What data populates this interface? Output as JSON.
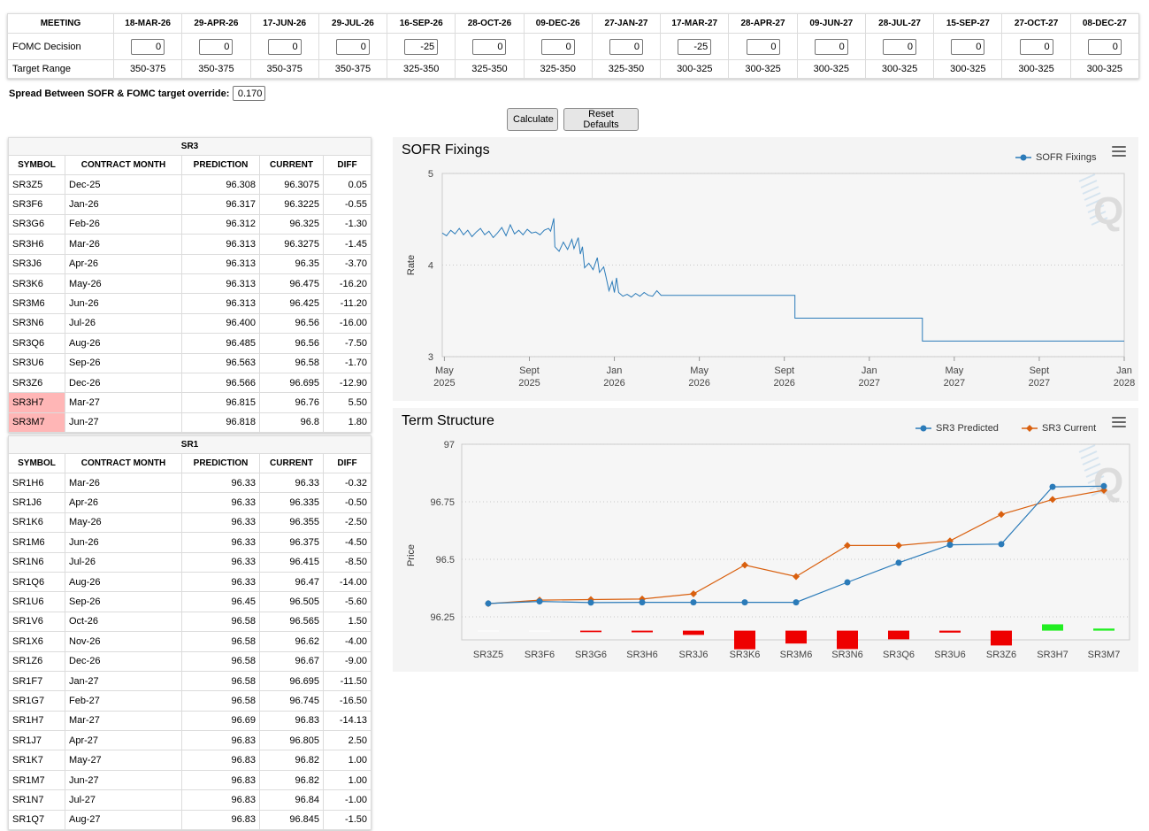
{
  "meetings": {
    "header_label": "MEETING",
    "decision_label": "FOMC Decision",
    "range_label": "Target Range",
    "columns": [
      {
        "date": "18-MAR-26",
        "decision": "0",
        "range": "350-375"
      },
      {
        "date": "29-APR-26",
        "decision": "0",
        "range": "350-375"
      },
      {
        "date": "17-JUN-26",
        "decision": "0",
        "range": "350-375"
      },
      {
        "date": "29-JUL-26",
        "decision": "0",
        "range": "350-375"
      },
      {
        "date": "16-SEP-26",
        "decision": "-25",
        "range": "325-350"
      },
      {
        "date": "28-OCT-26",
        "decision": "0",
        "range": "325-350"
      },
      {
        "date": "09-DEC-26",
        "decision": "0",
        "range": "325-350"
      },
      {
        "date": "27-JAN-27",
        "decision": "0",
        "range": "325-350"
      },
      {
        "date": "17-MAR-27",
        "decision": "-25",
        "range": "300-325"
      },
      {
        "date": "28-APR-27",
        "decision": "0",
        "range": "300-325"
      },
      {
        "date": "09-JUN-27",
        "decision": "0",
        "range": "300-325"
      },
      {
        "date": "28-JUL-27",
        "decision": "0",
        "range": "300-325"
      },
      {
        "date": "15-SEP-27",
        "decision": "0",
        "range": "300-325"
      },
      {
        "date": "27-OCT-27",
        "decision": "0",
        "range": "300-325"
      },
      {
        "date": "08-DEC-27",
        "decision": "0",
        "range": "300-325"
      }
    ]
  },
  "spread": {
    "label": "Spread Between SOFR & FOMC target override:",
    "value": "0.170"
  },
  "buttons": {
    "calculate": "Calculate",
    "reset": "Reset Defaults"
  },
  "sr3_table": {
    "title": "SR3",
    "headers": [
      "SYMBOL",
      "CONTRACT MONTH",
      "PREDICTION",
      "CURRENT",
      "DIFF"
    ],
    "rows": [
      {
        "symbol": "SR3Z5",
        "month": "Dec-25",
        "prediction": "96.308",
        "current": "96.3075",
        "diff": "0.05",
        "highlight": false
      },
      {
        "symbol": "SR3F6",
        "month": "Jan-26",
        "prediction": "96.317",
        "current": "96.3225",
        "diff": "-0.55",
        "highlight": false
      },
      {
        "symbol": "SR3G6",
        "month": "Feb-26",
        "prediction": "96.312",
        "current": "96.325",
        "diff": "-1.30",
        "highlight": false
      },
      {
        "symbol": "SR3H6",
        "month": "Mar-26",
        "prediction": "96.313",
        "current": "96.3275",
        "diff": "-1.45",
        "highlight": false
      },
      {
        "symbol": "SR3J6",
        "month": "Apr-26",
        "prediction": "96.313",
        "current": "96.35",
        "diff": "-3.70",
        "highlight": false
      },
      {
        "symbol": "SR3K6",
        "month": "May-26",
        "prediction": "96.313",
        "current": "96.475",
        "diff": "-16.20",
        "highlight": false
      },
      {
        "symbol": "SR3M6",
        "month": "Jun-26",
        "prediction": "96.313",
        "current": "96.425",
        "diff": "-11.20",
        "highlight": false
      },
      {
        "symbol": "SR3N6",
        "month": "Jul-26",
        "prediction": "96.400",
        "current": "96.56",
        "diff": "-16.00",
        "highlight": false
      },
      {
        "symbol": "SR3Q6",
        "month": "Aug-26",
        "prediction": "96.485",
        "current": "96.56",
        "diff": "-7.50",
        "highlight": false
      },
      {
        "symbol": "SR3U6",
        "month": "Sep-26",
        "prediction": "96.563",
        "current": "96.58",
        "diff": "-1.70",
        "highlight": false
      },
      {
        "symbol": "SR3Z6",
        "month": "Dec-26",
        "prediction": "96.566",
        "current": "96.695",
        "diff": "-12.90",
        "highlight": false
      },
      {
        "symbol": "SR3H7",
        "month": "Mar-27",
        "prediction": "96.815",
        "current": "96.76",
        "diff": "5.50",
        "highlight": true
      },
      {
        "symbol": "SR3M7",
        "month": "Jun-27",
        "prediction": "96.818",
        "current": "96.8",
        "diff": "1.80",
        "highlight": true
      }
    ]
  },
  "sr1_table": {
    "title": "SR1",
    "headers": [
      "SYMBOL",
      "CONTRACT MONTH",
      "PREDICTION",
      "CURRENT",
      "DIFF"
    ],
    "rows": [
      {
        "symbol": "SR1H6",
        "month": "Mar-26",
        "prediction": "96.33",
        "current": "96.33",
        "diff": "-0.32"
      },
      {
        "symbol": "SR1J6",
        "month": "Apr-26",
        "prediction": "96.33",
        "current": "96.335",
        "diff": "-0.50"
      },
      {
        "symbol": "SR1K6",
        "month": "May-26",
        "prediction": "96.33",
        "current": "96.355",
        "diff": "-2.50"
      },
      {
        "symbol": "SR1M6",
        "month": "Jun-26",
        "prediction": "96.33",
        "current": "96.375",
        "diff": "-4.50"
      },
      {
        "symbol": "SR1N6",
        "month": "Jul-26",
        "prediction": "96.33",
        "current": "96.415",
        "diff": "-8.50"
      },
      {
        "symbol": "SR1Q6",
        "month": "Aug-26",
        "prediction": "96.33",
        "current": "96.47",
        "diff": "-14.00"
      },
      {
        "symbol": "SR1U6",
        "month": "Sep-26",
        "prediction": "96.45",
        "current": "96.505",
        "diff": "-5.60"
      },
      {
        "symbol": "SR1V6",
        "month": "Oct-26",
        "prediction": "96.58",
        "current": "96.565",
        "diff": "1.50"
      },
      {
        "symbol": "SR1X6",
        "month": "Nov-26",
        "prediction": "96.58",
        "current": "96.62",
        "diff": "-4.00"
      },
      {
        "symbol": "SR1Z6",
        "month": "Dec-26",
        "prediction": "96.58",
        "current": "96.67",
        "diff": "-9.00"
      },
      {
        "symbol": "SR1F7",
        "month": "Jan-27",
        "prediction": "96.58",
        "current": "96.695",
        "diff": "-11.50"
      },
      {
        "symbol": "SR1G7",
        "month": "Feb-27",
        "prediction": "96.58",
        "current": "96.745",
        "diff": "-16.50"
      },
      {
        "symbol": "SR1H7",
        "month": "Mar-27",
        "prediction": "96.69",
        "current": "96.83",
        "diff": "-14.13"
      },
      {
        "symbol": "SR1J7",
        "month": "Apr-27",
        "prediction": "96.83",
        "current": "96.805",
        "diff": "2.50"
      },
      {
        "symbol": "SR1K7",
        "month": "May-27",
        "prediction": "96.83",
        "current": "96.82",
        "diff": "1.00"
      },
      {
        "symbol": "SR1M7",
        "month": "Jun-27",
        "prediction": "96.83",
        "current": "96.82",
        "diff": "1.00"
      },
      {
        "symbol": "SR1N7",
        "month": "Jul-27",
        "prediction": "96.83",
        "current": "96.84",
        "diff": "-1.00"
      },
      {
        "symbol": "SR1Q7",
        "month": "Aug-27",
        "prediction": "96.83",
        "current": "96.845",
        "diff": "-1.50"
      }
    ]
  },
  "chart_data": [
    {
      "type": "line",
      "title": "SOFR Fixings",
      "xlabel": "",
      "ylabel": "Rate",
      "ylim": [
        3,
        5
      ],
      "yticks": [
        "3",
        "4",
        "5"
      ],
      "xticks": [
        {
          "t": 4.0,
          "label1": "May",
          "label2": "2025"
        },
        {
          "t": 8.0,
          "label1": "Sept",
          "label2": "2025"
        },
        {
          "t": 12.0,
          "label1": "Jan",
          "label2": "2026"
        },
        {
          "t": 16.0,
          "label1": "May",
          "label2": "2026"
        },
        {
          "t": 20.0,
          "label1": "Sept",
          "label2": "2026"
        },
        {
          "t": 24.0,
          "label1": "Jan",
          "label2": "2027"
        },
        {
          "t": 28.0,
          "label1": "May",
          "label2": "2027"
        },
        {
          "t": 32.0,
          "label1": "Sept",
          "label2": "2027"
        },
        {
          "t": 36.0,
          "label1": "Jan",
          "label2": "2028"
        }
      ],
      "x_unit": "months since Jan 2025",
      "xlim": [
        3.9,
        36
      ],
      "legend": "SOFR Fixings",
      "color": "#2b7bb9",
      "series": [
        {
          "name": "SOFR Fixings",
          "points": [
            [
              3.9,
              4.35
            ],
            [
              4.1,
              4.32
            ],
            [
              4.3,
              4.38
            ],
            [
              4.5,
              4.34
            ],
            [
              4.7,
              4.4
            ],
            [
              4.9,
              4.33
            ],
            [
              5.1,
              4.38
            ],
            [
              5.3,
              4.31
            ],
            [
              5.5,
              4.36
            ],
            [
              5.7,
              4.4
            ],
            [
              5.9,
              4.33
            ],
            [
              6.1,
              4.37
            ],
            [
              6.3,
              4.3
            ],
            [
              6.5,
              4.35
            ],
            [
              6.7,
              4.41
            ],
            [
              6.9,
              4.32
            ],
            [
              7.1,
              4.44
            ],
            [
              7.3,
              4.34
            ],
            [
              7.5,
              4.38
            ],
            [
              7.7,
              4.33
            ],
            [
              7.9,
              4.39
            ],
            [
              8.1,
              4.35
            ],
            [
              8.3,
              4.36
            ],
            [
              8.5,
              4.33
            ],
            [
              8.7,
              4.38
            ],
            [
              8.9,
              4.4
            ],
            [
              9.0,
              4.37
            ],
            [
              9.15,
              4.51
            ],
            [
              9.2,
              4.2
            ],
            [
              9.4,
              4.15
            ],
            [
              9.6,
              4.25
            ],
            [
              9.8,
              4.17
            ],
            [
              10.0,
              4.28
            ],
            [
              10.1,
              4.18
            ],
            [
              10.3,
              4.3
            ],
            [
              10.4,
              4.12
            ],
            [
              10.5,
              4.2
            ],
            [
              10.6,
              3.97
            ],
            [
              10.8,
              4.02
            ],
            [
              11.0,
              3.95
            ],
            [
              11.2,
              4.08
            ],
            [
              11.3,
              3.92
            ],
            [
              11.5,
              3.98
            ],
            [
              11.6,
              3.88
            ],
            [
              11.75,
              3.72
            ],
            [
              11.9,
              3.82
            ],
            [
              12.0,
              3.7
            ],
            [
              12.1,
              3.86
            ],
            [
              12.2,
              3.7
            ],
            [
              12.4,
              3.66
            ],
            [
              12.6,
              3.68
            ],
            [
              12.8,
              3.65
            ],
            [
              13.0,
              3.69
            ],
            [
              13.2,
              3.66
            ],
            [
              13.4,
              3.7
            ],
            [
              13.6,
              3.67
            ],
            [
              13.8,
              3.66
            ],
            [
              14.0,
              3.72
            ],
            [
              14.2,
              3.67
            ],
            [
              20.5,
              3.67
            ],
            [
              20.5,
              3.42
            ],
            [
              26.5,
              3.42
            ],
            [
              26.5,
              3.17
            ],
            [
              36.0,
              3.17
            ]
          ]
        }
      ]
    },
    {
      "type": "line",
      "title": "Term Structure",
      "xlabel": "",
      "ylabel": "Price",
      "ylim": [
        96.15,
        97
      ],
      "yticks": [
        "96.25",
        "96.5",
        "96.75",
        "97"
      ],
      "categories": [
        "SR3Z5",
        "SR3F6",
        "SR3G6",
        "SR3H6",
        "SR3J6",
        "SR3K6",
        "SR3M6",
        "SR3N6",
        "SR3Q6",
        "SR3U6",
        "SR3Z6",
        "SR3H7",
        "SR3M7"
      ],
      "series": [
        {
          "name": "SR3 Predicted",
          "color": "#2b7bb9",
          "marker": "circle",
          "values": [
            96.308,
            96.317,
            96.312,
            96.313,
            96.313,
            96.313,
            96.313,
            96.4,
            96.485,
            96.563,
            96.566,
            96.815,
            96.818
          ]
        },
        {
          "name": "SR3 Current",
          "color": "#d9600f",
          "marker": "diamond",
          "values": [
            96.3075,
            96.3225,
            96.325,
            96.3275,
            96.35,
            96.475,
            96.425,
            96.56,
            96.56,
            96.58,
            96.695,
            96.76,
            96.8
          ]
        },
        {
          "name": "Diff",
          "type": "bar",
          "baseline": 96.19,
          "scale": 0.005,
          "values": [
            0.05,
            -0.55,
            -1.3,
            -1.45,
            -3.7,
            -16.2,
            -11.2,
            -16.0,
            -7.5,
            -1.7,
            -12.9,
            5.5,
            1.8
          ]
        }
      ],
      "legend": [
        "SR3 Predicted",
        "SR3 Current"
      ]
    }
  ]
}
